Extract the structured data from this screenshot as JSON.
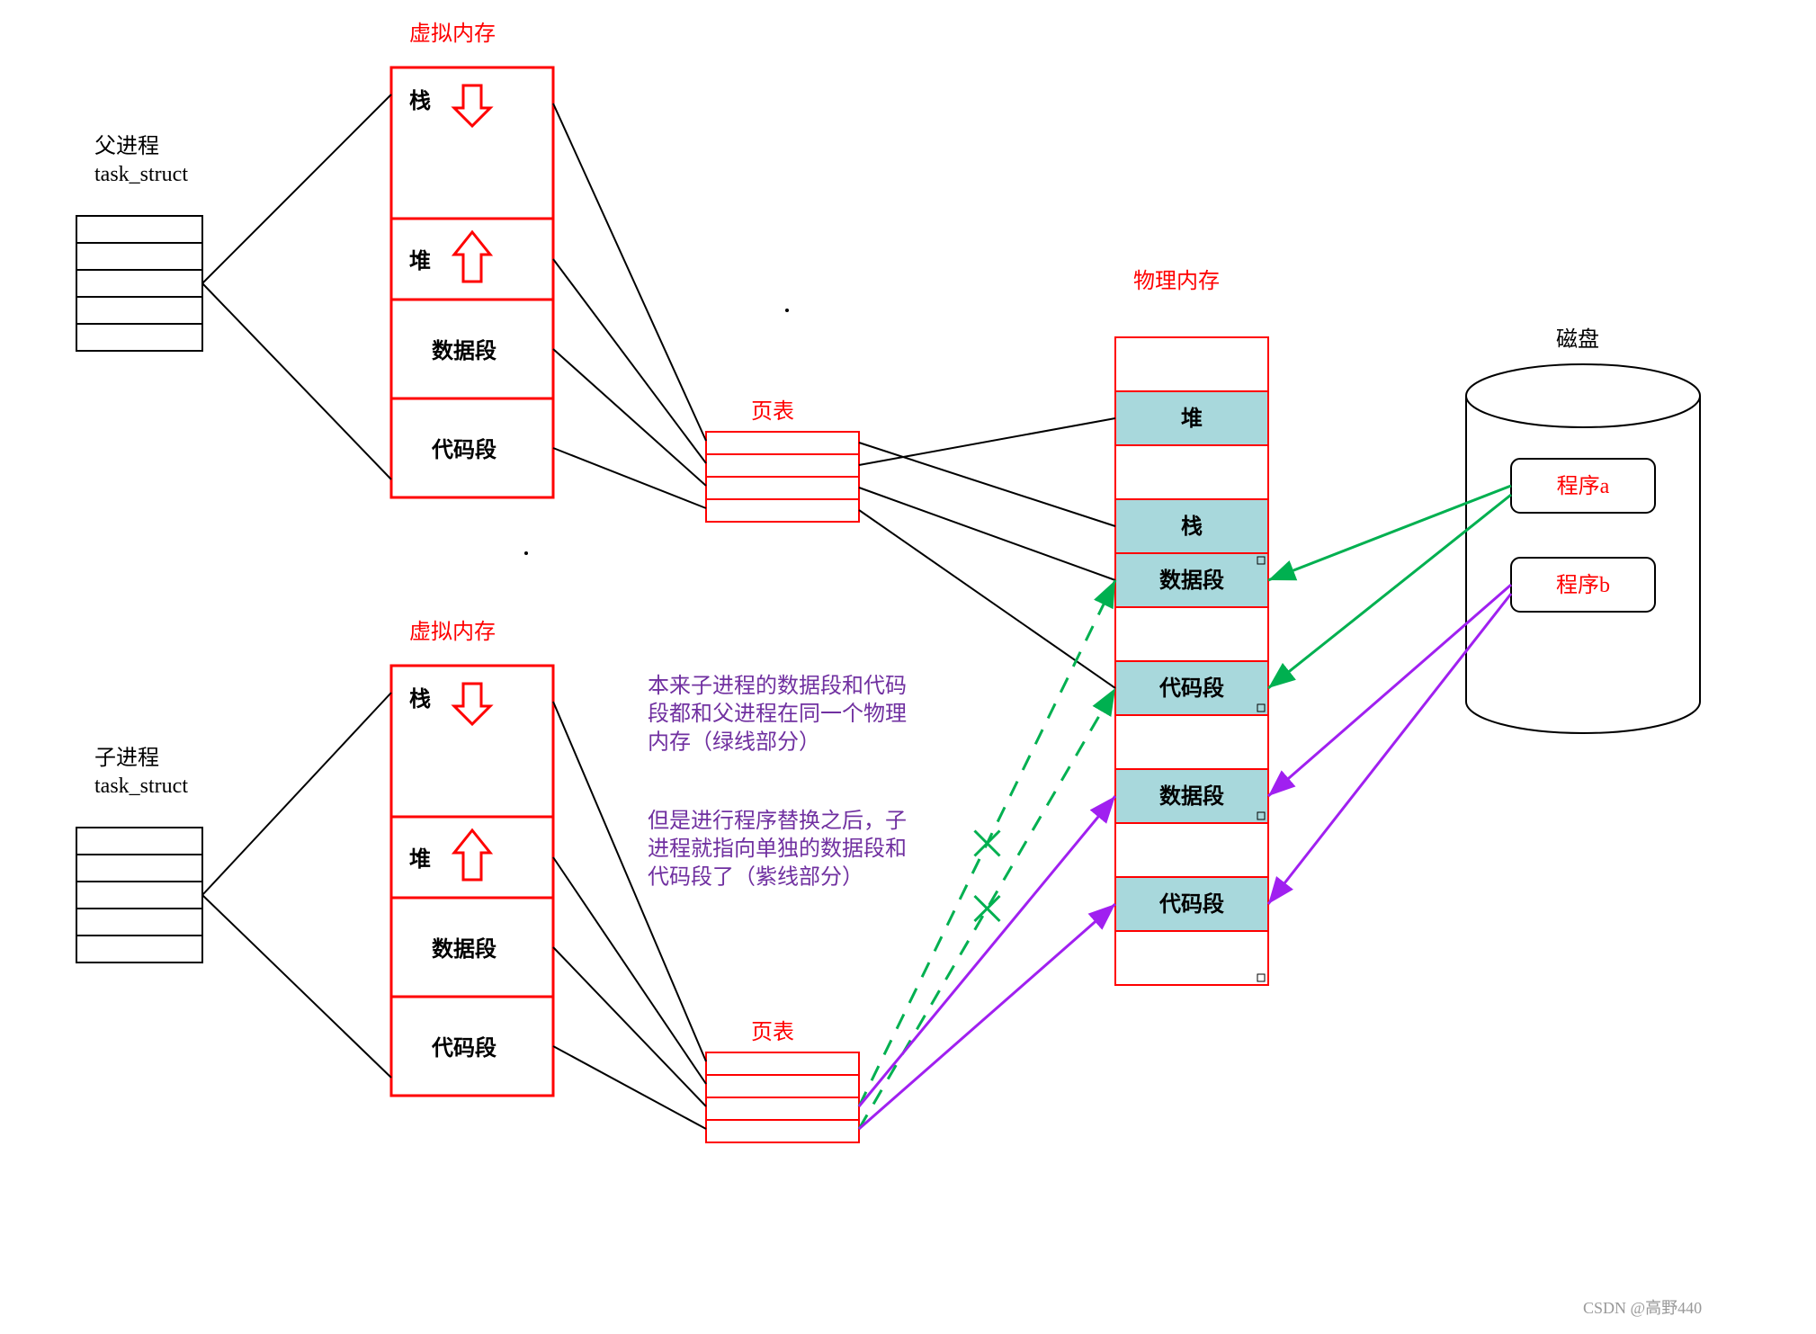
{
  "colors": {
    "red": "#ff0000",
    "black": "#000000",
    "purple": "#a020f0",
    "green": "#00b050",
    "purple_text": "#7030a0",
    "teal_fill": "#a8d8dc",
    "gray": "#999999"
  },
  "fonts": {
    "label_size": 24,
    "small_size": 16
  },
  "parent": {
    "title": "父进程\ntask_struct",
    "vm_title": "虚拟内存",
    "segments": [
      "栈",
      "堆",
      "数据段",
      "代码段"
    ],
    "page_table_label": "页表"
  },
  "child": {
    "title": "子进程\ntask_struct",
    "vm_title": "虚拟内存",
    "segments": [
      "栈",
      "堆",
      "数据段",
      "代码段"
    ],
    "page_table_label": "页表"
  },
  "physical": {
    "title": "物理内存",
    "rows": [
      {
        "label": "",
        "fill": false
      },
      {
        "label": "堆",
        "fill": true
      },
      {
        "label": "",
        "fill": false
      },
      {
        "label": "栈",
        "fill": true
      },
      {
        "label": "数据段",
        "fill": true
      },
      {
        "label": "",
        "fill": false
      },
      {
        "label": "代码段",
        "fill": true
      },
      {
        "label": "",
        "fill": false
      },
      {
        "label": "数据段",
        "fill": true
      },
      {
        "label": "",
        "fill": false
      },
      {
        "label": "代码段",
        "fill": true
      },
      {
        "label": "",
        "fill": false
      }
    ]
  },
  "disk": {
    "title": "磁盘",
    "program_a": "程序a",
    "program_b": "程序b"
  },
  "notes": {
    "line1": "本来子进程的数据段和代码\n段都和父进程在同一个物理\n内存（绿线部分）",
    "line2": "但是进行程序替换之后，子\n进程就指向单独的数据段和\n代码段了（紫线部分）"
  },
  "watermark": "CSDN @高野440"
}
